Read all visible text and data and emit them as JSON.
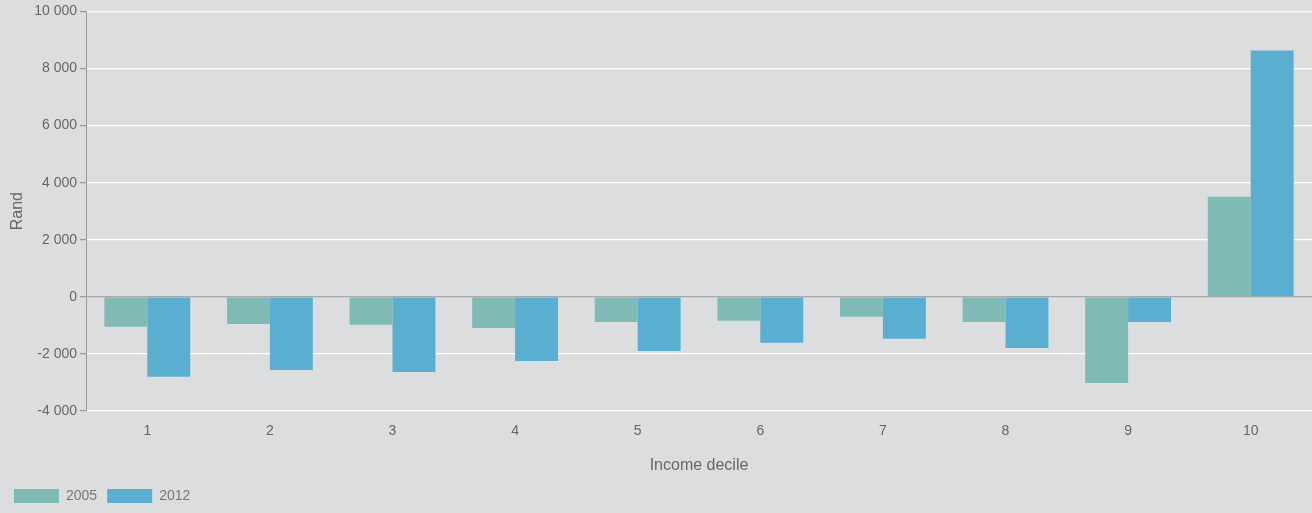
{
  "chart_data": {
    "type": "bar",
    "xlabel": "Income decile",
    "ylabel": "Rand",
    "categories": [
      "1",
      "2",
      "3",
      "4",
      "5",
      "6",
      "7",
      "8",
      "9",
      "10"
    ],
    "series": [
      {
        "name": "2005",
        "color": "#80bab4",
        "values": [
          -1050,
          -950,
          -980,
          -1090,
          -880,
          -840,
          -700,
          -880,
          -3020,
          3510
        ]
      },
      {
        "name": "2012",
        "color": "#5aaecf",
        "values": [
          -2800,
          -2560,
          -2630,
          -2250,
          -1900,
          -1610,
          -1470,
          -1790,
          -880,
          8630
        ]
      }
    ],
    "ylim": [
      -4000,
      10000
    ],
    "yticks": [
      {
        "value": -4000,
        "label": "-4 000"
      },
      {
        "value": -2000,
        "label": "-2 000"
      },
      {
        "value": 0,
        "label": "0"
      },
      {
        "value": 2000,
        "label": "2 000"
      },
      {
        "value": 4000,
        "label": "4 000"
      },
      {
        "value": 6000,
        "label": "6 000"
      },
      {
        "value": 8000,
        "label": "8 000"
      },
      {
        "value": 10000,
        "label": "10 000"
      }
    ],
    "grid": "y",
    "legend": "bottom left"
  }
}
